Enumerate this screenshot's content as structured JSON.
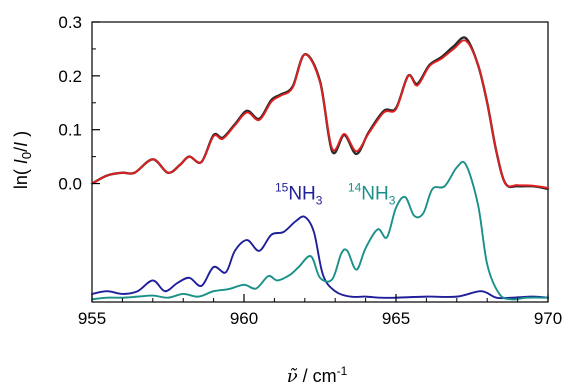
{
  "chart_data": {
    "type": "line",
    "xlabel": "ν̃ / cm⁻¹",
    "ylabel": "ln( I₀/I )",
    "xlim": [
      955,
      970
    ],
    "ylim": [
      -0.22,
      0.3
    ],
    "x_ticks": [
      "955",
      "960",
      "965",
      "970"
    ],
    "y_ticks": [
      "0.0",
      "0.1",
      "0.2",
      "0.3"
    ],
    "grid": false,
    "legend": "none",
    "annotations": [
      {
        "name": "15nh3-label",
        "mass": "15",
        "prefix": "",
        "base": "NH",
        "sub": "3",
        "color": "#1f1f9a",
        "x": 961.8,
        "y": -0.03
      },
      {
        "name": "14nh3-label",
        "mass": "14",
        "prefix": "",
        "base": "NH",
        "sub": "3",
        "color": "#1a9088",
        "x": 964.2,
        "y": -0.03
      }
    ],
    "series": [
      {
        "key": "measured",
        "color": "#2a2a2a",
        "x": [
          955.0,
          955.5,
          956.0,
          956.4,
          957.0,
          957.5,
          957.9,
          958.2,
          958.6,
          959.0,
          959.3,
          959.7,
          960.1,
          960.5,
          960.9,
          961.2,
          961.6,
          962.0,
          962.5,
          962.9,
          963.3,
          963.7,
          964.1,
          964.6,
          965.0,
          965.4,
          965.7,
          966.1,
          966.5,
          966.9,
          967.3,
          967.7,
          968.0,
          968.3,
          968.6,
          969.0,
          969.5,
          970.0
        ],
        "y": [
          0.0,
          0.015,
          0.02,
          0.02,
          0.045,
          0.02,
          0.035,
          0.05,
          0.04,
          0.09,
          0.085,
          0.11,
          0.135,
          0.12,
          0.155,
          0.165,
          0.18,
          0.24,
          0.19,
          0.06,
          0.09,
          0.055,
          0.095,
          0.135,
          0.14,
          0.2,
          0.185,
          0.22,
          0.235,
          0.255,
          0.27,
          0.22,
          0.15,
          0.06,
          0.0,
          -0.005,
          -0.005,
          -0.01
        ]
      },
      {
        "key": "simulated",
        "color": "#e02020",
        "x": [
          955.0,
          955.5,
          956.0,
          956.4,
          957.0,
          957.5,
          957.9,
          958.2,
          958.6,
          959.0,
          959.3,
          959.7,
          960.1,
          960.5,
          960.9,
          961.2,
          961.6,
          962.0,
          962.5,
          962.9,
          963.3,
          963.7,
          964.1,
          964.6,
          965.0,
          965.4,
          965.7,
          966.1,
          966.5,
          966.9,
          967.3,
          967.7,
          968.0,
          968.3,
          968.6,
          969.0,
          969.5,
          970.0
        ],
        "y": [
          0.0,
          0.015,
          0.02,
          0.02,
          0.045,
          0.02,
          0.035,
          0.05,
          0.04,
          0.088,
          0.083,
          0.108,
          0.132,
          0.118,
          0.152,
          0.163,
          0.178,
          0.24,
          0.188,
          0.065,
          0.092,
          0.06,
          0.093,
          0.132,
          0.138,
          0.2,
          0.182,
          0.218,
          0.232,
          0.25,
          0.265,
          0.22,
          0.15,
          0.06,
          0.0,
          -0.003,
          -0.004,
          -0.008
        ]
      },
      {
        "key": "15NH3",
        "color": "#1f1f9a",
        "x": [
          955.0,
          955.5,
          956.0,
          956.5,
          957.0,
          957.4,
          957.8,
          958.2,
          958.6,
          959.0,
          959.4,
          959.7,
          960.1,
          960.5,
          960.9,
          961.3,
          961.7,
          962.0,
          962.3,
          962.6,
          963.0,
          963.5,
          964.0,
          964.5,
          965.0,
          966.0,
          967.0,
          967.8,
          968.3,
          968.8,
          969.5,
          970.0
        ],
        "y": [
          -0.205,
          -0.2,
          -0.205,
          -0.2,
          -0.18,
          -0.2,
          -0.185,
          -0.175,
          -0.19,
          -0.155,
          -0.165,
          -0.125,
          -0.105,
          -0.125,
          -0.095,
          -0.09,
          -0.07,
          -0.062,
          -0.09,
          -0.17,
          -0.2,
          -0.21,
          -0.21,
          -0.212,
          -0.212,
          -0.21,
          -0.21,
          -0.2,
          -0.212,
          -0.212,
          -0.21,
          -0.212
        ]
      },
      {
        "key": "14NH3",
        "color": "#1a9088",
        "x": [
          955.0,
          955.5,
          956.0,
          956.5,
          957.0,
          957.5,
          958.0,
          958.5,
          959.0,
          959.5,
          960.0,
          960.4,
          960.8,
          961.1,
          961.5,
          961.8,
          962.2,
          962.5,
          962.9,
          963.2,
          963.4,
          963.7,
          964.0,
          964.4,
          964.7,
          965.0,
          965.3,
          965.6,
          965.9,
          966.2,
          966.6,
          967.0,
          967.3,
          967.7,
          968.0,
          968.4,
          968.8,
          969.3,
          970.0
        ],
        "y": [
          -0.215,
          -0.212,
          -0.212,
          -0.21,
          -0.208,
          -0.212,
          -0.205,
          -0.21,
          -0.2,
          -0.196,
          -0.188,
          -0.195,
          -0.172,
          -0.18,
          -0.17,
          -0.155,
          -0.135,
          -0.175,
          -0.178,
          -0.13,
          -0.125,
          -0.16,
          -0.12,
          -0.085,
          -0.1,
          -0.045,
          -0.025,
          -0.06,
          -0.055,
          -0.01,
          -0.005,
          0.03,
          0.035,
          -0.04,
          -0.15,
          -0.205,
          -0.215,
          -0.212,
          -0.212
        ]
      }
    ]
  }
}
